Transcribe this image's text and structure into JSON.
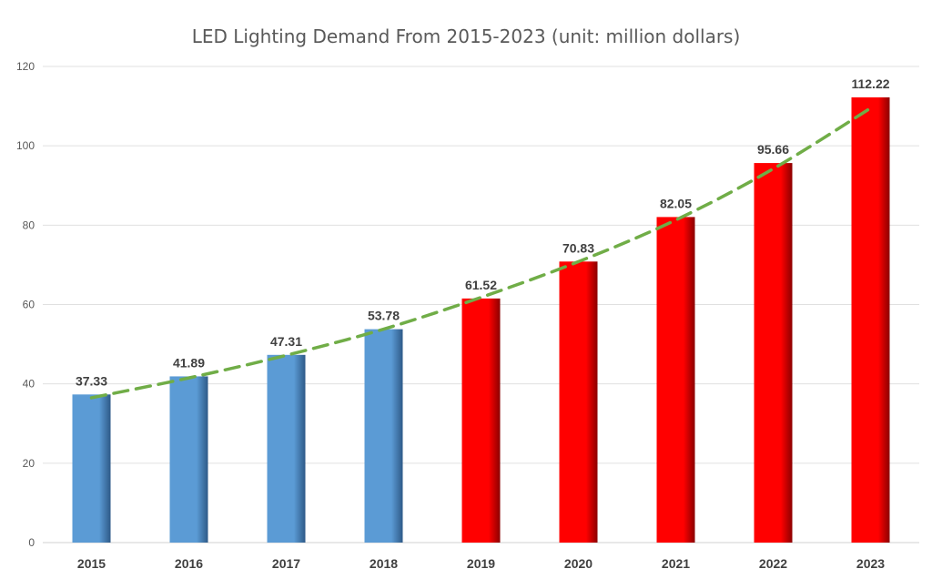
{
  "chart_data": {
    "type": "bar",
    "title": "LED Lighting Demand From 2015-2023 (unit: million dollars)",
    "xlabel": "",
    "ylabel": "",
    "ylim": [
      0,
      120
    ],
    "yticks": [
      0,
      20,
      40,
      60,
      80,
      100,
      120
    ],
    "grid": true,
    "legend": "none",
    "categories": [
      "2015",
      "2016",
      "2017",
      "2018",
      "2019",
      "2020",
      "2021",
      "2022",
      "2023"
    ],
    "values": [
      37.33,
      41.89,
      47.31,
      53.78,
      61.52,
      70.83,
      82.05,
      95.66,
      112.22
    ],
    "data_labels": [
      "37.33",
      "41.89",
      "47.31",
      "53.78",
      "61.52",
      "70.83",
      "82.05",
      "95.66",
      "112.22"
    ],
    "bar_colors": [
      "#5b9bd5",
      "#5b9bd5",
      "#5b9bd5",
      "#5b9bd5",
      "#ff0000",
      "#ff0000",
      "#ff0000",
      "#ff0000",
      "#ff0000"
    ],
    "trendline": {
      "type": "polynomial",
      "style": "dashed",
      "color": "#70ad47",
      "values": [
        36.5,
        41.5,
        47.2,
        53.8,
        61.8,
        70.8,
        81.3,
        94.2,
        109.5
      ]
    }
  }
}
